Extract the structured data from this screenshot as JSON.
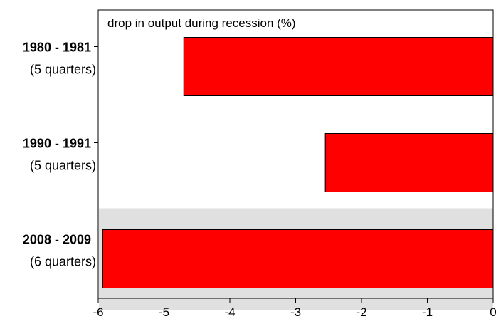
{
  "chart_data": {
    "type": "bar",
    "orientation": "horizontal",
    "title": "drop in output during recession (%)",
    "xlabel": "",
    "ylabel": "",
    "xlim": [
      -6,
      0
    ],
    "xticks": [
      "-6",
      "-5",
      "-4",
      "-3",
      "-2",
      "-1",
      "0"
    ],
    "categories": [
      {
        "label": "1980 - 1981",
        "sublabel": "(5 quarters)",
        "value": -4.7,
        "highlighted": false
      },
      {
        "label": "1990 - 1991",
        "sublabel": "(5 quarters)",
        "value": -2.55,
        "highlighted": false
      },
      {
        "label": "2008 - 2009",
        "sublabel": "(6 quarters)",
        "value": -5.93,
        "highlighted": true
      }
    ],
    "grid": false,
    "legend": "none",
    "colors": {
      "bar": "#ff0000",
      "bar_edge": "#000000",
      "highlight_band": "#e0e0e0",
      "axis": "#000000"
    }
  }
}
